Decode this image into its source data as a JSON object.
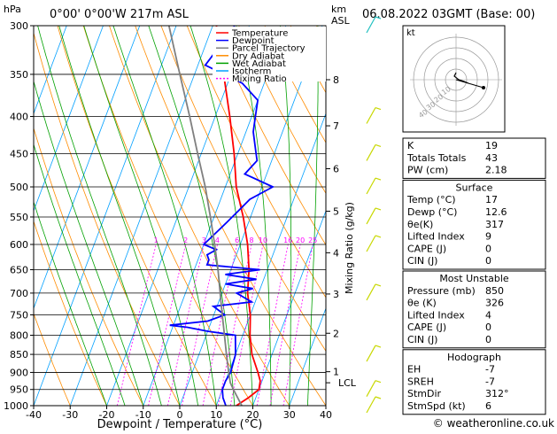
{
  "header": {
    "pressure_unit": "hPa",
    "location": "0°00' 0°00'W 217m ASL",
    "height_unit_km": "km",
    "height_unit_asl": "ASL",
    "datetime": "06.08.2022 03GMT (Base: 00)"
  },
  "chart_data": {
    "type": "line",
    "title": "",
    "xlabel": "Dewpoint / Temperature (°C)",
    "ylabel": "",
    "right_axis_label": "Mixing Ratio (g/kg)",
    "xlim": [
      -40,
      40
    ],
    "ylim": [
      1000,
      300
    ],
    "x_ticks": [
      -40,
      -30,
      -20,
      -10,
      0,
      10,
      20,
      30,
      40
    ],
    "pressure_ticks": [
      300,
      350,
      400,
      450,
      500,
      550,
      600,
      650,
      700,
      750,
      800,
      850,
      900,
      950,
      1000
    ],
    "km_ticks": [
      {
        "label": "8",
        "p": 356
      },
      {
        "label": "7",
        "p": 412
      },
      {
        "label": "6",
        "p": 472
      },
      {
        "label": "5",
        "p": 540
      },
      {
        "label": "4",
        "p": 616
      },
      {
        "label": "3",
        "p": 702
      },
      {
        "label": "2",
        "p": 795
      },
      {
        "label": "1",
        "p": 898
      }
    ],
    "lcl": {
      "label": "LCL",
      "p": 930
    },
    "mixing_ratio_labels": [
      "1",
      "2",
      "3",
      "4",
      "6",
      "8",
      "10",
      "16",
      "20",
      "25"
    ],
    "legend": [
      {
        "name": "Temperature",
        "color": "#ff0000",
        "dash": ""
      },
      {
        "name": "Dewpoint",
        "color": "#0000ff",
        "dash": ""
      },
      {
        "name": "Parcel Trajectory",
        "color": "#808080",
        "dash": ""
      },
      {
        "name": "Dry Adiabat",
        "color": "#ff8c00",
        "dash": ""
      },
      {
        "name": "Wet Adiabat",
        "color": "#00a000",
        "dash": ""
      },
      {
        "name": "Isotherm",
        "color": "#00a0ff",
        "dash": ""
      },
      {
        "name": "Mixing Ratio",
        "color": "#ff00ff",
        "dash": "2,2"
      }
    ],
    "series": [
      {
        "name": "Temperature",
        "color": "#ff0000",
        "points": [
          [
            1000,
            15.5
          ],
          [
            975,
            18
          ],
          [
            950,
            20
          ],
          [
            925,
            19.5
          ],
          [
            900,
            18
          ],
          [
            850,
            14.5
          ],
          [
            800,
            12
          ],
          [
            750,
            10
          ],
          [
            700,
            7
          ],
          [
            650,
            5
          ],
          [
            600,
            2
          ],
          [
            550,
            -2
          ],
          [
            500,
            -7
          ],
          [
            450,
            -11
          ],
          [
            400,
            -16
          ],
          [
            350,
            -22
          ],
          [
            300,
            -29
          ]
        ]
      },
      {
        "name": "Dewpoint",
        "color": "#0000ff",
        "points": [
          [
            1000,
            12.6
          ],
          [
            975,
            11
          ],
          [
            950,
            10
          ],
          [
            925,
            10
          ],
          [
            900,
            10.5
          ],
          [
            850,
            10
          ],
          [
            800,
            8
          ],
          [
            790,
            0
          ],
          [
            780,
            -6
          ],
          [
            775,
            -11
          ],
          [
            765,
            -1
          ],
          [
            750,
            3
          ],
          [
            730,
            -1
          ],
          [
            720,
            9
          ],
          [
            700,
            4
          ],
          [
            690,
            8
          ],
          [
            680,
            0
          ],
          [
            670,
            8
          ],
          [
            660,
            -1
          ],
          [
            650,
            8
          ],
          [
            640,
            -7
          ],
          [
            630,
            -7
          ],
          [
            620,
            -8
          ],
          [
            610,
            -6
          ],
          [
            600,
            -10
          ],
          [
            580,
            -8
          ],
          [
            560,
            -6
          ],
          [
            540,
            -4
          ],
          [
            520,
            -2
          ],
          [
            500,
            3
          ],
          [
            480,
            -6
          ],
          [
            460,
            -4
          ],
          [
            450,
            -5
          ],
          [
            420,
            -8
          ],
          [
            400,
            -9
          ],
          [
            380,
            -10
          ],
          [
            360,
            -16
          ],
          [
            340,
            -28
          ],
          [
            320,
            -26
          ],
          [
            300,
            -24
          ]
        ]
      },
      {
        "name": "Parcel Trajectory",
        "color": "#808080",
        "points": [
          [
            1000,
            17
          ],
          [
            950,
            13
          ],
          [
            930,
            11.5
          ],
          [
            900,
            10
          ],
          [
            850,
            7.5
          ],
          [
            800,
            5
          ],
          [
            750,
            2.3
          ],
          [
            700,
            -0.5
          ],
          [
            650,
            -3.5
          ],
          [
            600,
            -7
          ],
          [
            550,
            -11
          ],
          [
            500,
            -15.5
          ],
          [
            450,
            -21
          ],
          [
            400,
            -27
          ],
          [
            350,
            -34
          ],
          [
            300,
            -42
          ]
        ]
      }
    ],
    "grid": true
  },
  "hodograph": {
    "unit_label": "kt",
    "ring_labels": [
      "10",
      "20",
      "30",
      "40"
    ]
  },
  "indices_table": {
    "rows": [
      {
        "label": "K",
        "value": "19"
      },
      {
        "label": "Totals Totals",
        "value": "43"
      },
      {
        "label": "PW (cm)",
        "value": "2.18"
      }
    ]
  },
  "surface_table": {
    "title": "Surface",
    "rows": [
      {
        "label": "Temp (°C)",
        "value": "17"
      },
      {
        "label": "Dewp (°C)",
        "value": "12.6"
      },
      {
        "label": "θe(K)",
        "value": "317"
      },
      {
        "label": "Lifted Index",
        "value": "9"
      },
      {
        "label": "CAPE (J)",
        "value": "0"
      },
      {
        "label": "CIN (J)",
        "value": "0"
      }
    ]
  },
  "unstable_table": {
    "title": "Most Unstable",
    "rows": [
      {
        "label": "Pressure (mb)",
        "value": "850"
      },
      {
        "label": "θe (K)",
        "value": "326"
      },
      {
        "label": "Lifted Index",
        "value": "4"
      },
      {
        "label": "CAPE (J)",
        "value": "0"
      },
      {
        "label": "CIN (J)",
        "value": "0"
      }
    ]
  },
  "hodograph_table": {
    "title": "Hodograph",
    "rows": [
      {
        "label": "EH",
        "value": "-7"
      },
      {
        "label": "SREH",
        "value": "-7"
      },
      {
        "label": "StmDir",
        "value": "312°"
      },
      {
        "label": "StmSpd (kt)",
        "value": "6"
      }
    ]
  },
  "footer": {
    "copyright": "© weatheronline.co.uk"
  }
}
